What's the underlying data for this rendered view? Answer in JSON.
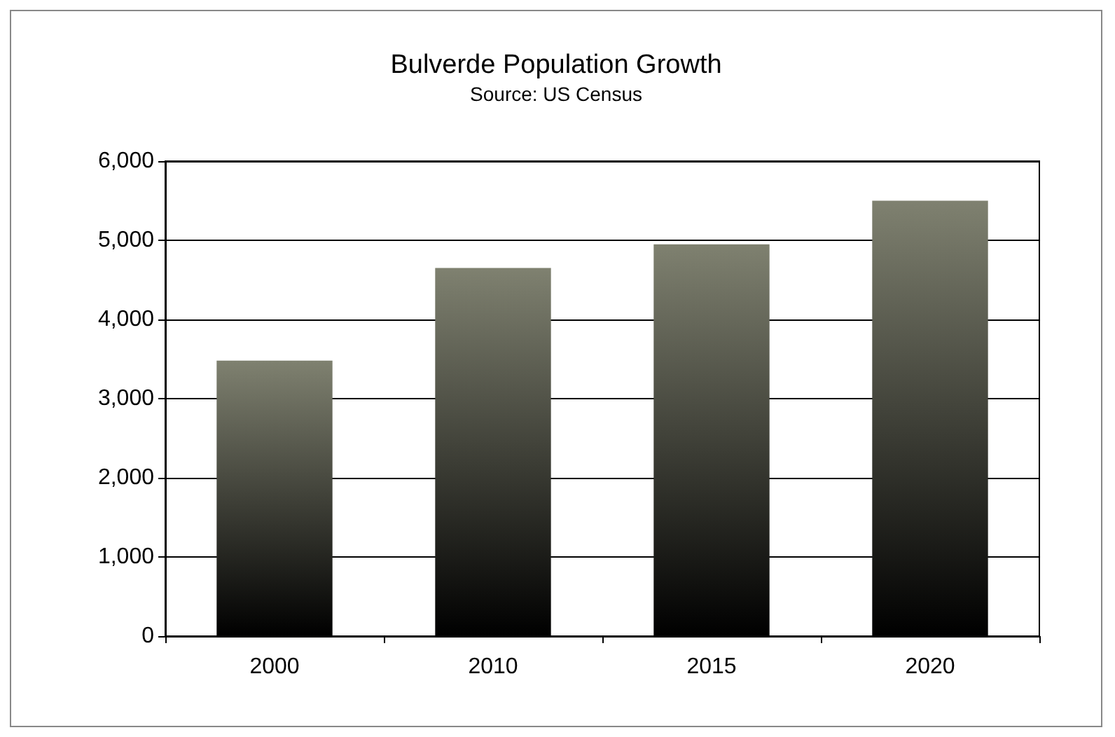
{
  "chart_data": {
    "type": "bar",
    "title": "Bulverde Population Growth",
    "subtitle": "Source: US Census",
    "categories": [
      "2000",
      "2010",
      "2015",
      "2020"
    ],
    "values": [
      3480,
      4650,
      4950,
      5500
    ],
    "color": "#7f8170",
    "ylim": [
      0,
      6000
    ],
    "yticks": [
      0,
      {
        "value": 1000,
        "label": "1,000"
      },
      {
        "value": 2000,
        "label": "2,000"
      },
      {
        "value": 3000,
        "label": "3,000"
      },
      {
        "value": 4000,
        "label": "4,000"
      },
      {
        "value": 5000,
        "label": "5,000"
      },
      {
        "value": 6000,
        "label": "6,000"
      }
    ],
    "grid": "y"
  }
}
